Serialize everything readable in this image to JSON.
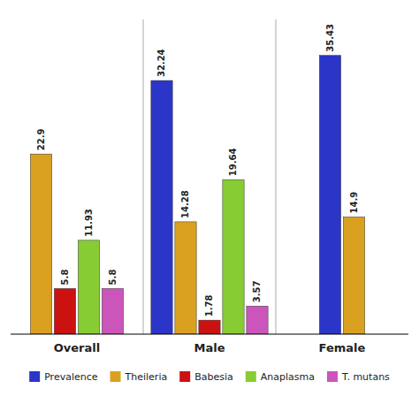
{
  "chart_data": {
    "type": "bar",
    "categories": [
      "Overall",
      "Male",
      "Female"
    ],
    "series": [
      {
        "name": "Prevalence",
        "color": "#2B35C8",
        "values": [
          null,
          32.24,
          35.43
        ]
      },
      {
        "name": "Theileria",
        "color": "#DAA020",
        "values": [
          22.9,
          14.28,
          14.9
        ]
      },
      {
        "name": "Babesia",
        "color": "#CC1111",
        "values": [
          5.8,
          1.78,
          null
        ]
      },
      {
        "name": "Anaplasma",
        "color": "#88CC33",
        "values": [
          11.93,
          19.64,
          null
        ]
      },
      {
        "name": "T. mutans",
        "color": "#CC55BB",
        "values": [
          5.8,
          3.57,
          null
        ]
      }
    ],
    "ylim": [
      0,
      40
    ],
    "grid": false,
    "legend": "bottom",
    "data_labels": true,
    "tick_labels": "x"
  }
}
